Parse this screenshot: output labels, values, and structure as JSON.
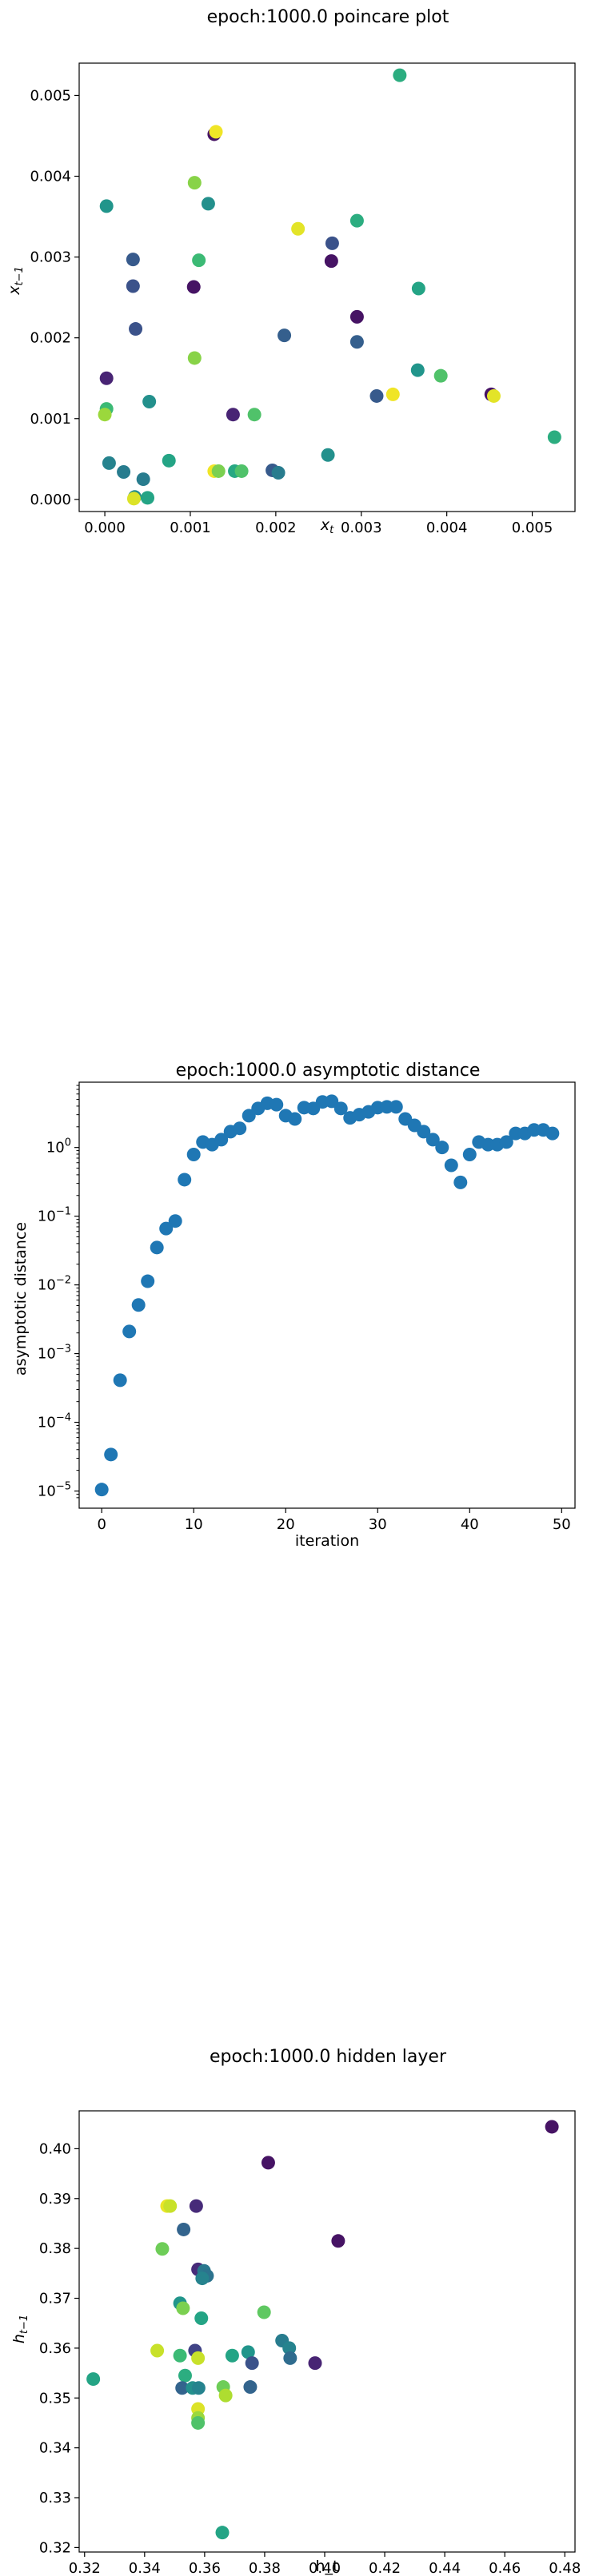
{
  "chart_data": [
    {
      "type": "scatter",
      "title": "epoch:1000.0 poincare plot",
      "xlabel": "x_t",
      "ylabel": "x_{t-1}",
      "xlim": [
        -0.0003,
        0.0055
      ],
      "ylim": [
        -0.00015,
        0.0054
      ],
      "yscale": "linear",
      "grid": false,
      "colormap": "viridis",
      "xticks": [
        0.0,
        0.001,
        0.002,
        0.003,
        0.004,
        0.005
      ],
      "xticklabels": [
        "0.000",
        "0.001",
        "0.002",
        "0.003",
        "0.004",
        "0.005"
      ],
      "yticks": [
        0.0,
        0.001,
        0.002,
        0.003,
        0.004,
        0.005
      ],
      "yticklabels": [
        "0.000",
        "0.001",
        "0.002",
        "0.003",
        "0.004",
        "0.005"
      ],
      "points": [
        {
          "x": 0.00345,
          "y": 0.00525,
          "c": 0.62
        },
        {
          "x": 0.00128,
          "y": 0.00452,
          "c": 0.05
        },
        {
          "x": 0.0013,
          "y": 0.00455,
          "c": 0.98
        },
        {
          "x": 0.00105,
          "y": 0.00392,
          "c": 0.82
        },
        {
          "x": 0.00121,
          "y": 0.00366,
          "c": 0.5
        },
        {
          "x": 2e-05,
          "y": 0.00363,
          "c": 0.52
        },
        {
          "x": 0.00295,
          "y": 0.00345,
          "c": 0.62
        },
        {
          "x": 0.00226,
          "y": 0.00335,
          "c": 0.96
        },
        {
          "x": 0.00266,
          "y": 0.00317,
          "c": 0.25
        },
        {
          "x": 0.00033,
          "y": 0.00297,
          "c": 0.28
        },
        {
          "x": 0.0011,
          "y": 0.00296,
          "c": 0.68
        },
        {
          "x": 0.00265,
          "y": 0.00295,
          "c": 0.05
        },
        {
          "x": 0.00033,
          "y": 0.00264,
          "c": 0.25
        },
        {
          "x": 0.00104,
          "y": 0.00263,
          "c": 0.05
        },
        {
          "x": 0.00367,
          "y": 0.00261,
          "c": 0.58
        },
        {
          "x": 0.00295,
          "y": 0.00226,
          "c": 0.05
        },
        {
          "x": 0.00036,
          "y": 0.00211,
          "c": 0.25
        },
        {
          "x": 0.0021,
          "y": 0.00203,
          "c": 0.3
        },
        {
          "x": 0.00295,
          "y": 0.00195,
          "c": 0.3
        },
        {
          "x": 0.00105,
          "y": 0.00175,
          "c": 0.82
        },
        {
          "x": 0.00366,
          "y": 0.0016,
          "c": 0.52
        },
        {
          "x": 0.00393,
          "y": 0.00153,
          "c": 0.72
        },
        {
          "x": 2e-05,
          "y": 0.0015,
          "c": 0.1
        },
        {
          "x": 0.00337,
          "y": 0.0013,
          "c": 0.98
        },
        {
          "x": 0.00318,
          "y": 0.00128,
          "c": 0.28
        },
        {
          "x": 0.00452,
          "y": 0.0013,
          "c": 0.05
        },
        {
          "x": 0.00455,
          "y": 0.00128,
          "c": 0.96
        },
        {
          "x": 0.00052,
          "y": 0.00121,
          "c": 0.5
        },
        {
          "x": 2e-05,
          "y": 0.00112,
          "c": 0.68
        },
        {
          "x": 0.0,
          "y": 0.00105,
          "c": 0.85
        },
        {
          "x": 0.0015,
          "y": 0.00105,
          "c": 0.1
        },
        {
          "x": 0.00175,
          "y": 0.00105,
          "c": 0.72
        },
        {
          "x": 0.00526,
          "y": 0.00077,
          "c": 0.62
        },
        {
          "x": 0.00261,
          "y": 0.00055,
          "c": 0.5
        },
        {
          "x": 0.00075,
          "y": 0.00048,
          "c": 0.58
        },
        {
          "x": 5e-05,
          "y": 0.00045,
          "c": 0.45
        },
        {
          "x": 0.00022,
          "y": 0.00034,
          "c": 0.42
        },
        {
          "x": 0.00128,
          "y": 0.00035,
          "c": 0.98
        },
        {
          "x": 0.00133,
          "y": 0.00035,
          "c": 0.8
        },
        {
          "x": 0.00152,
          "y": 0.00035,
          "c": 0.6
        },
        {
          "x": 0.0016,
          "y": 0.00035,
          "c": 0.72
        },
        {
          "x": 0.00196,
          "y": 0.00036,
          "c": 0.28
        },
        {
          "x": 0.00203,
          "y": 0.00033,
          "c": 0.42
        },
        {
          "x": 0.00045,
          "y": 0.00025,
          "c": 0.42
        },
        {
          "x": 0.00035,
          "y": 3e-05,
          "c": 0.48
        },
        {
          "x": 0.00034,
          "y": 1e-05,
          "c": 0.95
        },
        {
          "x": 0.0005,
          "y": 2e-05,
          "c": 0.58
        }
      ]
    },
    {
      "type": "scatter",
      "title": "epoch:1000.0 asymptotic distance",
      "xlabel": "iteration",
      "ylabel": "asymptotic distance",
      "xlim": [
        -2.45,
        51.45
      ],
      "ylim_log10": [
        -5.25,
        0.95
      ],
      "yscale": "log",
      "grid": false,
      "color": "#1f77b4",
      "xticks": [
        0,
        10,
        20,
        30,
        40,
        50
      ],
      "xticklabels": [
        "0",
        "10",
        "20",
        "30",
        "40",
        "50"
      ],
      "yticks": [
        1e-05,
        0.0001,
        0.001,
        0.01,
        0.1,
        1
      ],
      "ytick_mantissa": [
        "10",
        "10",
        "10",
        "10",
        "10",
        "10"
      ],
      "ytick_exponent": [
        "−5",
        "−4",
        "−3",
        "−2",
        "−1",
        "0"
      ],
      "x": [
        0,
        1,
        2,
        3,
        4,
        5,
        6,
        7,
        8,
        9,
        10,
        11,
        12,
        13,
        14,
        15,
        16,
        17,
        18,
        19,
        20,
        21,
        22,
        23,
        24,
        25,
        26,
        27,
        28,
        29,
        30,
        31,
        32,
        33,
        34,
        35,
        36,
        37,
        38,
        39,
        40,
        41,
        42,
        43,
        44,
        45,
        46,
        47,
        48,
        49
      ],
      "y": [
        1.05e-05,
        3.4e-05,
        0.00041,
        0.0021,
        0.0051,
        0.0113,
        0.035,
        0.066,
        0.085,
        0.34,
        0.79,
        1.2,
        1.1,
        1.3,
        1.7,
        1.9,
        2.9,
        3.7,
        4.4,
        4.2,
        2.9,
        2.6,
        3.8,
        3.7,
        4.6,
        4.7,
        3.7,
        2.7,
        3.0,
        3.3,
        3.8,
        3.9,
        3.9,
        2.6,
        2.1,
        1.7,
        1.3,
        1.0,
        0.55,
        0.31,
        0.79,
        1.2,
        1.1,
        1.1,
        1.2,
        1.6,
        1.6,
        1.8,
        1.8,
        1.6
      ]
    },
    {
      "type": "scatter",
      "title": "epoch:1000.0 hidden layer",
      "xlabel": "h_t",
      "ylabel": "h_{t-1}",
      "xlim": [
        0.3182,
        0.4834
      ],
      "ylim": [
        0.3191,
        0.4076
      ],
      "yscale": "linear",
      "grid": false,
      "colormap": "viridis",
      "xticks": [
        0.32,
        0.34,
        0.36,
        0.38,
        0.4,
        0.42,
        0.44,
        0.46,
        0.48
      ],
      "xticklabels": [
        "0.32",
        "0.34",
        "0.36",
        "0.38",
        "0.40",
        "0.42",
        "0.44",
        "0.46",
        "0.48"
      ],
      "yticks": [
        0.32,
        0.33,
        0.34,
        0.35,
        0.36,
        0.37,
        0.38,
        0.39,
        0.4
      ],
      "yticklabels": [
        "0.32",
        "0.33",
        "0.34",
        "0.35",
        "0.36",
        "0.37",
        "0.38",
        "0.39",
        "0.40"
      ],
      "points": [
        {
          "x": 0.4757,
          "y": 0.4044,
          "c": 0.05
        },
        {
          "x": 0.3812,
          "y": 0.3972,
          "c": 0.05
        },
        {
          "x": 0.3475,
          "y": 0.3885,
          "c": 0.97
        },
        {
          "x": 0.3485,
          "y": 0.3885,
          "c": 0.92
        },
        {
          "x": 0.3572,
          "y": 0.3885,
          "c": 0.12
        },
        {
          "x": 0.353,
          "y": 0.3838,
          "c": 0.32
        },
        {
          "x": 0.4045,
          "y": 0.3815,
          "c": 0.05
        },
        {
          "x": 0.3459,
          "y": 0.3799,
          "c": 0.78
        },
        {
          "x": 0.3578,
          "y": 0.3758,
          "c": 0.12
        },
        {
          "x": 0.3598,
          "y": 0.3755,
          "c": 0.4
        },
        {
          "x": 0.3608,
          "y": 0.3745,
          "c": 0.38
        },
        {
          "x": 0.3592,
          "y": 0.374,
          "c": 0.45
        },
        {
          "x": 0.3518,
          "y": 0.369,
          "c": 0.52
        },
        {
          "x": 0.3528,
          "y": 0.368,
          "c": 0.8
        },
        {
          "x": 0.3798,
          "y": 0.3672,
          "c": 0.75
        },
        {
          "x": 0.3589,
          "y": 0.366,
          "c": 0.58
        },
        {
          "x": 0.3858,
          "y": 0.3615,
          "c": 0.42
        },
        {
          "x": 0.3442,
          "y": 0.3595,
          "c": 0.92
        },
        {
          "x": 0.3518,
          "y": 0.3585,
          "c": 0.68
        },
        {
          "x": 0.3568,
          "y": 0.3595,
          "c": 0.2
        },
        {
          "x": 0.3578,
          "y": 0.358,
          "c": 0.92
        },
        {
          "x": 0.3692,
          "y": 0.3585,
          "c": 0.58
        },
        {
          "x": 0.3745,
          "y": 0.3592,
          "c": 0.52
        },
        {
          "x": 0.3882,
          "y": 0.36,
          "c": 0.45
        },
        {
          "x": 0.3885,
          "y": 0.358,
          "c": 0.35
        },
        {
          "x": 0.3968,
          "y": 0.357,
          "c": 0.1
        },
        {
          "x": 0.3758,
          "y": 0.357,
          "c": 0.25
        },
        {
          "x": 0.3229,
          "y": 0.3538,
          "c": 0.58
        },
        {
          "x": 0.3535,
          "y": 0.3545,
          "c": 0.62
        },
        {
          "x": 0.3525,
          "y": 0.352,
          "c": 0.32
        },
        {
          "x": 0.356,
          "y": 0.352,
          "c": 0.5
        },
        {
          "x": 0.358,
          "y": 0.352,
          "c": 0.45
        },
        {
          "x": 0.3662,
          "y": 0.3522,
          "c": 0.78
        },
        {
          "x": 0.3752,
          "y": 0.3522,
          "c": 0.32
        },
        {
          "x": 0.367,
          "y": 0.3505,
          "c": 0.88
        },
        {
          "x": 0.3578,
          "y": 0.3478,
          "c": 0.95
        },
        {
          "x": 0.3578,
          "y": 0.346,
          "c": 0.85
        },
        {
          "x": 0.3578,
          "y": 0.345,
          "c": 0.72
        },
        {
          "x": 0.3659,
          "y": 0.323,
          "c": 0.58
        }
      ]
    }
  ]
}
